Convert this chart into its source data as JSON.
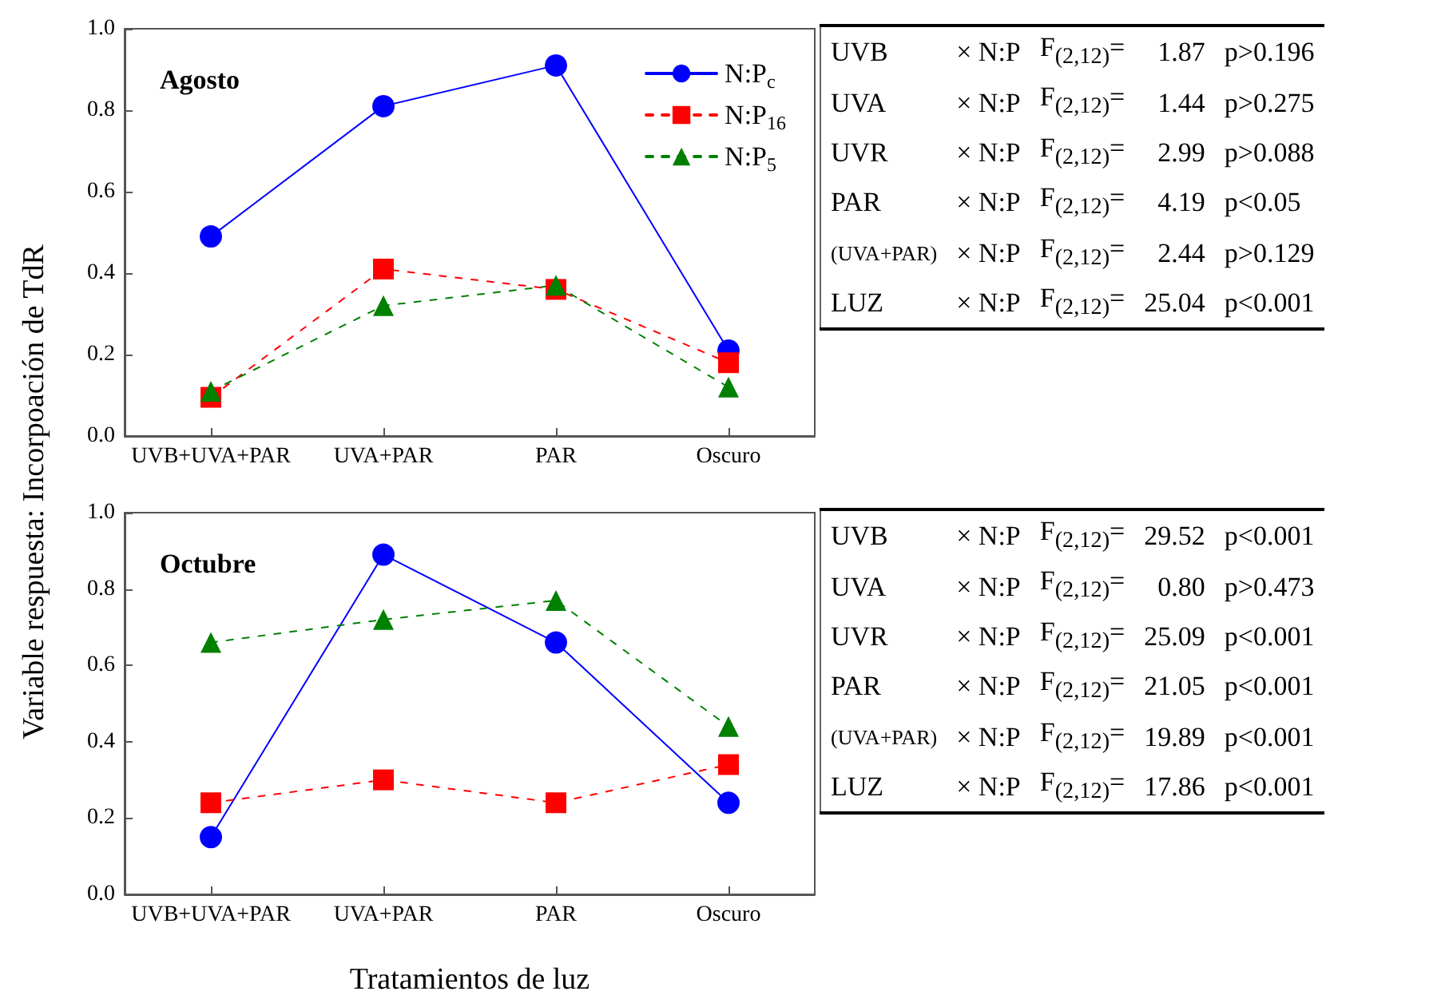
{
  "chart_data": [
    {
      "type": "line",
      "title": "Agosto",
      "ylabel": "Variable respuesta: Incorpoación de TdR",
      "categories": [
        "UVB+UVA+PAR",
        "UVA+PAR",
        "PAR",
        "Oscuro"
      ],
      "ylim": [
        0,
        1
      ],
      "yticks": [
        {
          "value": 0,
          "label": "0.0"
        },
        {
          "value": 0.2,
          "label": "0.2"
        },
        {
          "value": 0.4,
          "label": "0.4"
        },
        {
          "value": 0.6,
          "label": "0.6"
        },
        {
          "value": 0.8,
          "label": "0.8"
        },
        {
          "value": 1,
          "label": "1.0"
        }
      ],
      "grid": false,
      "legend": "top right",
      "series": [
        {
          "name": "N:P$_{c}$",
          "color": "#0000ff",
          "marker": "circle",
          "line_style": "solid",
          "values": [
            0.49,
            0.81,
            0.91,
            0.21
          ]
        },
        {
          "name": "N:P$_{16}$",
          "color": "#ff0000",
          "marker": "square",
          "line_style": "dashed",
          "values": [
            0.095,
            0.41,
            0.36,
            0.18
          ]
        },
        {
          "name": "N:P$_{5}$",
          "color": "#008000",
          "marker": "triangle",
          "line_style": "dashed",
          "values": [
            0.11,
            0.32,
            0.37,
            0.12
          ]
        }
      ]
    },
    {
      "type": "other",
      "annotations": [
        "UVB",
        "× N:P",
        "F$_{(2,12)}$=",
        "1.87",
        "p>0.196",
        "UVA",
        "× N:P",
        "F$_{(2,12)}$=",
        "1.44",
        "p>0.275",
        "UVR",
        "× N:P",
        "F$_{(2,12)}$=",
        "2.99",
        "p>0.088",
        "PAR",
        "× N:P",
        "F$_{(2,12)}$=",
        "4.19",
        "p<0.05",
        "(UVA+PAR)",
        "× N:P",
        "F$_{(2,12)}$=",
        "2.44",
        "p>0.129",
        "LUZ",
        "× N:P",
        "F$_{(2,12)}$=",
        "25.04",
        "p<0.001"
      ]
    },
    {
      "type": "line",
      "title": "Octubre",
      "xlabel": "Tratamientos de luz",
      "categories": [
        "UVB+UVA+PAR",
        "UVA+PAR",
        "PAR",
        "Oscuro"
      ],
      "ylim": [
        0,
        1
      ],
      "yticks": [
        {
          "value": 0,
          "label": "0.0"
        },
        {
          "value": 0.2,
          "label": "0.2"
        },
        {
          "value": 0.4,
          "label": "0.4"
        },
        {
          "value": 0.6,
          "label": "0.6"
        },
        {
          "value": 0.8,
          "label": "0.8"
        },
        {
          "value": 1,
          "label": "1.0"
        }
      ],
      "grid": false,
      "legend": false,
      "series": [
        {
          "color": "#0000ff",
          "marker": "circle",
          "line_style": "solid",
          "values": [
            0.15,
            0.89,
            0.66,
            0.24
          ]
        },
        {
          "color": "#ff0000",
          "marker": "square",
          "line_style": "dashed",
          "values": [
            0.24,
            0.3,
            0.24,
            0.34
          ]
        },
        {
          "color": "#008000",
          "marker": "triangle",
          "line_style": "dashed",
          "values": [
            0.66,
            0.72,
            0.77,
            0.44
          ]
        }
      ]
    },
    {
      "type": "other",
      "annotations": [
        "UVB",
        "× N:P",
        "F$_{(2,12)}$=",
        "29.52",
        "p<0.001",
        "UVA",
        "× N:P",
        "F$_{(2,12)}$=",
        "0.80",
        "p>0.473",
        "UVR",
        "× N:P",
        "F$_{(2,12)}$=",
        "25.09",
        "p<0.001",
        "PAR",
        "× N:P",
        "F$_{(2,12)}$=",
        "21.05",
        "p<0.001",
        "(UVA+PAR)",
        "× N:P",
        "F$_{(2,12)}$=",
        "19.89",
        "p<0.001",
        "LUZ",
        "× N:P",
        "F$_{(2,12)}$=",
        "17.86",
        "p<0.001"
      ]
    }
  ]
}
